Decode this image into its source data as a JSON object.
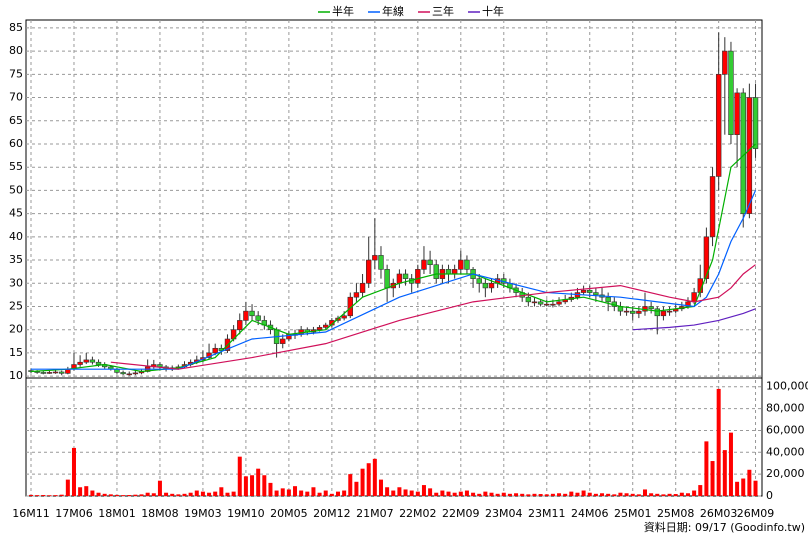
{
  "chart_data": {
    "type": "candlestick",
    "legend": "top",
    "grid": true,
    "up_color": "#ff0000",
    "down_color": "#33cc33",
    "categories": [
      "16M11",
      null,
      null,
      null,
      null,
      null,
      null,
      "17M06",
      null,
      null,
      null,
      null,
      null,
      null,
      "18M01",
      null,
      null,
      null,
      null,
      null,
      null,
      "18M08",
      null,
      null,
      null,
      null,
      null,
      null,
      "19M03",
      null,
      null,
      null,
      null,
      null,
      null,
      "19M10",
      null,
      null,
      null,
      null,
      null,
      null,
      "20M05",
      null,
      null,
      null,
      null,
      null,
      null,
      "20M12",
      null,
      null,
      null,
      null,
      null,
      null,
      "21M07",
      null,
      null,
      null,
      null,
      null,
      null,
      "22M02",
      null,
      null,
      null,
      null,
      null,
      null,
      "22M09",
      null,
      null,
      null,
      null,
      null,
      null,
      "23M04",
      null,
      null,
      null,
      null,
      null,
      null,
      "23M11",
      null,
      null,
      null,
      null,
      null,
      null,
      "24M06",
      null,
      null,
      null,
      null,
      null,
      null,
      "25M01",
      null,
      null,
      null,
      null,
      null,
      null,
      "25M08",
      null,
      null,
      null,
      null,
      null,
      null,
      "26M03",
      null,
      null,
      null,
      null,
      null,
      "26M09"
    ],
    "candles": [
      [
        11.2,
        11.6,
        10.6,
        11
      ],
      [
        11,
        11.3,
        10.5,
        10.8
      ],
      [
        10.8,
        11.1,
        10.4,
        10.7
      ],
      [
        10.7,
        11.2,
        10.5,
        10.8
      ],
      [
        10.8,
        11.3,
        10.5,
        10.9
      ],
      [
        10.9,
        11.2,
        10.2,
        10.6
      ],
      [
        10.6,
        12,
        10.4,
        11.5
      ],
      [
        11.5,
        15,
        11.2,
        12.5
      ],
      [
        12.5,
        14.5,
        12,
        13
      ],
      [
        13,
        15,
        12.6,
        13.5
      ],
      [
        13.5,
        14.2,
        12.5,
        13
      ],
      [
        13,
        13.6,
        12,
        12.5
      ],
      [
        12.5,
        13,
        11.6,
        12
      ],
      [
        12,
        12.4,
        11.2,
        11.5
      ],
      [
        11.5,
        11.8,
        10.5,
        10.8
      ],
      [
        10.8,
        11.2,
        10.2,
        10.5
      ],
      [
        10.5,
        11,
        10.1,
        10.5
      ],
      [
        10.5,
        11.2,
        10.2,
        10.7
      ],
      [
        10.7,
        11.4,
        10.4,
        11
      ],
      [
        11,
        13.6,
        10.8,
        12
      ],
      [
        12,
        13.5,
        11.6,
        12.5
      ],
      [
        12.5,
        13,
        11.3,
        12
      ],
      [
        12,
        12.4,
        11,
        11.5
      ],
      [
        11.5,
        12.3,
        11.1,
        11.8
      ],
      [
        11.8,
        12.5,
        11.4,
        12
      ],
      [
        12,
        13.2,
        11.7,
        12.5
      ],
      [
        12.5,
        13.6,
        12.1,
        13
      ],
      [
        13,
        14.4,
        12.6,
        13.5
      ],
      [
        13.5,
        15.5,
        13,
        14
      ],
      [
        14,
        17,
        13.6,
        15
      ],
      [
        15,
        17,
        14.5,
        16
      ],
      [
        16,
        16.8,
        14.6,
        15.5
      ],
      [
        15.5,
        19,
        15,
        18
      ],
      [
        18,
        21,
        17.5,
        20
      ],
      [
        20,
        23.5,
        19,
        22
      ],
      [
        22,
        26,
        21,
        24
      ],
      [
        24,
        25.5,
        22,
        23
      ],
      [
        23,
        24,
        21,
        22
      ],
      [
        22,
        23,
        20,
        21
      ],
      [
        21,
        22,
        19,
        20
      ],
      [
        20,
        20.5,
        14,
        17
      ],
      [
        17,
        19,
        16,
        18
      ],
      [
        18,
        19.8,
        17.5,
        19
      ],
      [
        19,
        20,
        18,
        19
      ],
      [
        19,
        20.8,
        18.5,
        20
      ],
      [
        20,
        20.5,
        18.8,
        19.5
      ],
      [
        19.5,
        20.6,
        19,
        20
      ],
      [
        20,
        21,
        19.6,
        20.5
      ],
      [
        20.5,
        21.5,
        20,
        21
      ],
      [
        21,
        22.5,
        20.5,
        22
      ],
      [
        22,
        23,
        21.5,
        22.5
      ],
      [
        22.5,
        24,
        22,
        23
      ],
      [
        23,
        28,
        22.5,
        27
      ],
      [
        27,
        30,
        26,
        28
      ],
      [
        28,
        32,
        27,
        30
      ],
      [
        30,
        40,
        29,
        35
      ],
      [
        35,
        44,
        33,
        36
      ],
      [
        36,
        38,
        31,
        33
      ],
      [
        33,
        34,
        26,
        29
      ],
      [
        29,
        31,
        27,
        30
      ],
      [
        30,
        33,
        29,
        32
      ],
      [
        32,
        33,
        29.5,
        31
      ],
      [
        31,
        32,
        28,
        30
      ],
      [
        30,
        34,
        29,
        33
      ],
      [
        33,
        38,
        32,
        35
      ],
      [
        35,
        37,
        32,
        34
      ],
      [
        34,
        35,
        30,
        31
      ],
      [
        31,
        34,
        30,
        33
      ],
      [
        33,
        34,
        30,
        32
      ],
      [
        32,
        34,
        31,
        33
      ],
      [
        33,
        37,
        32,
        35
      ],
      [
        35,
        36,
        32,
        33
      ],
      [
        33,
        33.5,
        29,
        31
      ],
      [
        31,
        32,
        28,
        30
      ],
      [
        30,
        31,
        27,
        29
      ],
      [
        29,
        31,
        28,
        30
      ],
      [
        30,
        32,
        29,
        31
      ],
      [
        31,
        32,
        29,
        30
      ],
      [
        30,
        31,
        28,
        29
      ],
      [
        29,
        30,
        27,
        28
      ],
      [
        28,
        29,
        26,
        27
      ],
      [
        27,
        28,
        25,
        26
      ],
      [
        26,
        27,
        25,
        26
      ],
      [
        26,
        26.5,
        25,
        25.5
      ],
      [
        25.5,
        26.5,
        25,
        25.5
      ],
      [
        25.5,
        26.5,
        24.8,
        25.5
      ],
      [
        25.5,
        27,
        25,
        26
      ],
      [
        26,
        27.5,
        25.5,
        26.5
      ],
      [
        26.5,
        28,
        26,
        27
      ],
      [
        27,
        29,
        26.5,
        28
      ],
      [
        28,
        29.5,
        27.5,
        28.5
      ],
      [
        28.5,
        29.5,
        27,
        28
      ],
      [
        28,
        29,
        26,
        27.5
      ],
      [
        27.5,
        29,
        26,
        27
      ],
      [
        27,
        28,
        24,
        26
      ],
      [
        26,
        27,
        24,
        25
      ],
      [
        25,
        26,
        23,
        24
      ],
      [
        24,
        25,
        23,
        24
      ],
      [
        24,
        25,
        22,
        23.5
      ],
      [
        23.5,
        25,
        22.5,
        24
      ],
      [
        24,
        28,
        23,
        25
      ],
      [
        25,
        26,
        23.5,
        24.5
      ],
      [
        24.5,
        25,
        19,
        23
      ],
      [
        23,
        25,
        22,
        24
      ],
      [
        24,
        25,
        23,
        24
      ],
      [
        24,
        25.5,
        23.5,
        24.5
      ],
      [
        24.5,
        26,
        24,
        25
      ],
      [
        25,
        27,
        24.5,
        26
      ],
      [
        26,
        29,
        25.5,
        28
      ],
      [
        28,
        34,
        27,
        31
      ],
      [
        31,
        42,
        30,
        40
      ],
      [
        40,
        55,
        38,
        53
      ],
      [
        53,
        84,
        50,
        75
      ],
      [
        75,
        83,
        62,
        80
      ],
      [
        80,
        82,
        60,
        62
      ],
      [
        62,
        72,
        55,
        71
      ],
      [
        71,
        72,
        42,
        45
      ],
      [
        45,
        73,
        44,
        70
      ],
      [
        70,
        73,
        57,
        59
      ]
    ],
    "ylim": [
      9.6,
      86.7
    ],
    "yticks": [
      10,
      15,
      20,
      25,
      30,
      35,
      40,
      45,
      50,
      55,
      60,
      65,
      70,
      75,
      80,
      85
    ],
    "series": [
      {
        "name": "半年",
        "color": "#00b000",
        "x": [
          0,
          6,
          12,
          18,
          24,
          30,
          36,
          42,
          48,
          54,
          60,
          66,
          72,
          78,
          84,
          90,
          96,
          102,
          108,
          111,
          114,
          118
        ],
        "values": [
          11,
          11.5,
          12.5,
          11,
          11.8,
          14,
          22,
          19,
          20,
          27,
          30,
          32,
          32,
          29,
          26,
          27,
          25,
          24,
          25,
          35,
          55,
          60
        ]
      },
      {
        "name": "年線",
        "color": "#0060ff",
        "x": [
          0,
          12,
          24,
          36,
          48,
          60,
          72,
          84,
          96,
          108,
          110,
          112,
          114,
          116,
          118
        ],
        "values": [
          11.5,
          11.5,
          11.5,
          18,
          19.5,
          27,
          32,
          28,
          27,
          25,
          27,
          32,
          39,
          44,
          50
        ]
      },
      {
        "name": "三年",
        "color": "#d0105a",
        "x": [
          13,
          24,
          36,
          48,
          60,
          72,
          84,
          96,
          104,
          108,
          112,
          114,
          116,
          118
        ],
        "values": [
          13,
          11.5,
          14,
          17,
          22,
          26,
          28,
          29.5,
          27,
          26,
          27,
          29,
          32,
          34
        ]
      },
      {
        "name": "十年",
        "color": "#6020c0",
        "x": [
          98,
          104,
          108,
          112,
          116,
          118
        ],
        "values": [
          20,
          20.5,
          21,
          22,
          23.5,
          24.5
        ]
      }
    ],
    "volume": {
      "color": "#ff0000",
      "ylim": [
        0,
        108000
      ],
      "yticks": [
        0,
        {
          "value": 20000,
          "label": "20,000"
        },
        {
          "value": 40000,
          "label": "40,000"
        },
        {
          "value": 60000,
          "label": "60,000"
        },
        {
          "value": 80000,
          "label": "80,000"
        },
        {
          "value": 100000,
          "label": "100,000"
        }
      ],
      "values": [
        1000,
        800,
        900,
        700,
        800,
        1200,
        15000,
        44000,
        8000,
        9000,
        5000,
        3000,
        2000,
        1500,
        1000,
        800,
        900,
        1200,
        1500,
        3000,
        2500,
        14000,
        3000,
        2000,
        1500,
        2000,
        3000,
        5000,
        4000,
        3000,
        4000,
        8000,
        3000,
        4000,
        36000,
        18000,
        19000,
        25000,
        19000,
        12000,
        5000,
        7000,
        6000,
        9000,
        5000,
        4000,
        8000,
        3000,
        5000,
        2000,
        4000,
        5000,
        20000,
        13000,
        25000,
        30000,
        34000,
        15000,
        8000,
        5000,
        8000,
        6000,
        5000,
        4000,
        10000,
        7000,
        3000,
        5000,
        4000,
        3000,
        4000,
        5000,
        3000,
        2000,
        4000,
        3000,
        2000,
        3000,
        2000,
        2500,
        2000,
        1500,
        2000,
        1800,
        1500,
        2000,
        2500,
        2000,
        4000,
        3000,
        5000,
        3000,
        2000,
        2500,
        2000,
        1500,
        3000,
        2500,
        2000,
        1500,
        6000,
        2500,
        2000,
        1500,
        2000,
        1800,
        3000,
        2500,
        5000,
        10000,
        50000,
        32000,
        98000,
        42000,
        58000,
        13000,
        16000,
        24000,
        14000
      ]
    },
    "footer": "資料日期: 09/17  (Goodinfo.tw)"
  }
}
